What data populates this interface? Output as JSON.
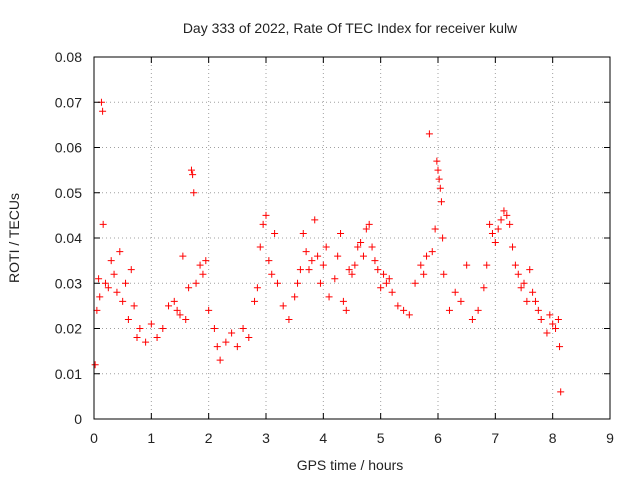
{
  "chart_data": {
    "type": "scatter",
    "title": "Day 333 of 2022, Rate Of TEC Index for receiver kulw",
    "xlabel": "GPS time / hours",
    "ylabel": "ROTI / TECUs",
    "xlim": [
      0,
      9
    ],
    "ylim": [
      0,
      0.08
    ],
    "xticks": [
      "0",
      "1",
      "2",
      "3",
      "4",
      "5",
      "6",
      "7",
      "8",
      "9"
    ],
    "yticks": [
      "0",
      "0.01",
      "0.02",
      "0.03",
      "0.04",
      "0.05",
      "0.06",
      "0.07",
      "0.08"
    ],
    "grid": true,
    "marker": "+",
    "color": "#ff0000",
    "series": [
      {
        "values": [
          [
            0.02,
            0.012
          ],
          [
            0.05,
            0.024
          ],
          [
            0.08,
            0.031
          ],
          [
            0.1,
            0.027
          ],
          [
            0.13,
            0.07
          ],
          [
            0.15,
            0.068
          ],
          [
            0.16,
            0.043
          ],
          [
            0.2,
            0.03
          ],
          [
            0.25,
            0.029
          ],
          [
            0.3,
            0.035
          ],
          [
            0.35,
            0.032
          ],
          [
            0.4,
            0.028
          ],
          [
            0.45,
            0.037
          ],
          [
            0.5,
            0.026
          ],
          [
            0.55,
            0.03
          ],
          [
            0.6,
            0.022
          ],
          [
            0.65,
            0.033
          ],
          [
            0.7,
            0.025
          ],
          [
            0.75,
            0.018
          ],
          [
            0.8,
            0.02
          ],
          [
            0.9,
            0.017
          ],
          [
            1.0,
            0.021
          ],
          [
            1.1,
            0.018
          ],
          [
            1.2,
            0.02
          ],
          [
            1.3,
            0.025
          ],
          [
            1.4,
            0.026
          ],
          [
            1.45,
            0.024
          ],
          [
            1.5,
            0.023
          ],
          [
            1.55,
            0.036
          ],
          [
            1.6,
            0.022
          ],
          [
            1.65,
            0.029
          ],
          [
            1.7,
            0.055
          ],
          [
            1.72,
            0.054
          ],
          [
            1.74,
            0.05
          ],
          [
            1.78,
            0.03
          ],
          [
            1.85,
            0.034
          ],
          [
            1.9,
            0.032
          ],
          [
            1.95,
            0.035
          ],
          [
            2.0,
            0.024
          ],
          [
            2.1,
            0.02
          ],
          [
            2.15,
            0.016
          ],
          [
            2.2,
            0.013
          ],
          [
            2.3,
            0.017
          ],
          [
            2.4,
            0.019
          ],
          [
            2.5,
            0.016
          ],
          [
            2.6,
            0.02
          ],
          [
            2.7,
            0.018
          ],
          [
            2.8,
            0.026
          ],
          [
            2.85,
            0.029
          ],
          [
            2.9,
            0.038
          ],
          [
            2.95,
            0.043
          ],
          [
            3.0,
            0.045
          ],
          [
            3.05,
            0.035
          ],
          [
            3.1,
            0.032
          ],
          [
            3.15,
            0.041
          ],
          [
            3.2,
            0.03
          ],
          [
            3.3,
            0.025
          ],
          [
            3.4,
            0.022
          ],
          [
            3.5,
            0.027
          ],
          [
            3.55,
            0.03
          ],
          [
            3.6,
            0.033
          ],
          [
            3.65,
            0.041
          ],
          [
            3.7,
            0.037
          ],
          [
            3.75,
            0.033
          ],
          [
            3.8,
            0.035
          ],
          [
            3.85,
            0.044
          ],
          [
            3.9,
            0.036
          ],
          [
            3.95,
            0.03
          ],
          [
            4.0,
            0.034
          ],
          [
            4.05,
            0.038
          ],
          [
            4.1,
            0.027
          ],
          [
            4.2,
            0.031
          ],
          [
            4.25,
            0.036
          ],
          [
            4.3,
            0.041
          ],
          [
            4.35,
            0.026
          ],
          [
            4.4,
            0.024
          ],
          [
            4.45,
            0.033
          ],
          [
            4.5,
            0.032
          ],
          [
            4.55,
            0.034
          ],
          [
            4.6,
            0.038
          ],
          [
            4.65,
            0.039
          ],
          [
            4.7,
            0.036
          ],
          [
            4.75,
            0.042
          ],
          [
            4.8,
            0.043
          ],
          [
            4.85,
            0.038
          ],
          [
            4.9,
            0.035
          ],
          [
            4.95,
            0.033
          ],
          [
            5.0,
            0.029
          ],
          [
            5.05,
            0.032
          ],
          [
            5.1,
            0.03
          ],
          [
            5.15,
            0.031
          ],
          [
            5.2,
            0.028
          ],
          [
            5.3,
            0.025
          ],
          [
            5.4,
            0.024
          ],
          [
            5.5,
            0.023
          ],
          [
            5.6,
            0.03
          ],
          [
            5.7,
            0.034
          ],
          [
            5.75,
            0.032
          ],
          [
            5.8,
            0.036
          ],
          [
            5.85,
            0.063
          ],
          [
            5.9,
            0.037
          ],
          [
            5.95,
            0.042
          ],
          [
            5.98,
            0.057
          ],
          [
            6.0,
            0.055
          ],
          [
            6.02,
            0.053
          ],
          [
            6.04,
            0.051
          ],
          [
            6.06,
            0.048
          ],
          [
            6.08,
            0.04
          ],
          [
            6.1,
            0.032
          ],
          [
            6.2,
            0.024
          ],
          [
            6.3,
            0.028
          ],
          [
            6.4,
            0.026
          ],
          [
            6.5,
            0.034
          ],
          [
            6.6,
            0.022
          ],
          [
            6.7,
            0.024
          ],
          [
            6.8,
            0.029
          ],
          [
            6.85,
            0.034
          ],
          [
            6.9,
            0.043
          ],
          [
            6.95,
            0.041
          ],
          [
            7.0,
            0.039
          ],
          [
            7.05,
            0.042
          ],
          [
            7.1,
            0.044
          ],
          [
            7.15,
            0.046
          ],
          [
            7.2,
            0.045
          ],
          [
            7.25,
            0.043
          ],
          [
            7.3,
            0.038
          ],
          [
            7.35,
            0.034
          ],
          [
            7.4,
            0.032
          ],
          [
            7.45,
            0.029
          ],
          [
            7.5,
            0.03
          ],
          [
            7.55,
            0.026
          ],
          [
            7.6,
            0.033
          ],
          [
            7.65,
            0.028
          ],
          [
            7.7,
            0.026
          ],
          [
            7.75,
            0.024
          ],
          [
            7.8,
            0.022
          ],
          [
            7.9,
            0.019
          ],
          [
            7.95,
            0.023
          ],
          [
            8.0,
            0.021
          ],
          [
            8.05,
            0.02
          ],
          [
            8.1,
            0.022
          ],
          [
            8.12,
            0.016
          ],
          [
            8.14,
            0.006
          ]
        ]
      }
    ]
  }
}
